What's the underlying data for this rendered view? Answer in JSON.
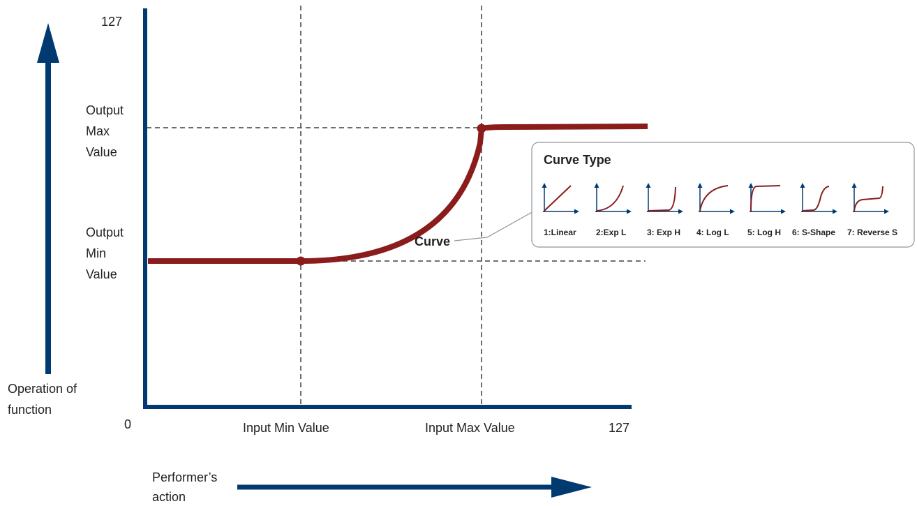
{
  "axis": {
    "y_max_label": "127",
    "origin_label": "0",
    "x_max_label": "127"
  },
  "labels": {
    "output_max": [
      "Output",
      "Max",
      "Value"
    ],
    "output_min": [
      "Output",
      "Min",
      "Value"
    ],
    "operation": [
      "Operation of",
      "function"
    ],
    "input_min": "Input Min Value",
    "input_max": "Input Max Value",
    "performer": [
      "Performer’s",
      "action"
    ],
    "curve": "Curve"
  },
  "curve_type_box": {
    "title": "Curve Type",
    "types": [
      {
        "label": "1:Linear",
        "shape": "linear"
      },
      {
        "label": "2:Exp L",
        "shape": "exp-l"
      },
      {
        "label": "3: Exp H",
        "shape": "exp-h"
      },
      {
        "label": "4: Log L",
        "shape": "log-l"
      },
      {
        "label": "5: Log H",
        "shape": "log-h"
      },
      {
        "label": "6: S-Shape",
        "shape": "s-shape"
      },
      {
        "label": "7: Reverse S",
        "shape": "reverse-s"
      }
    ]
  },
  "colors": {
    "axis": "#003a70",
    "curve": "#8b1c1c",
    "guide": "#6d6e71",
    "box_border": "#939598"
  }
}
